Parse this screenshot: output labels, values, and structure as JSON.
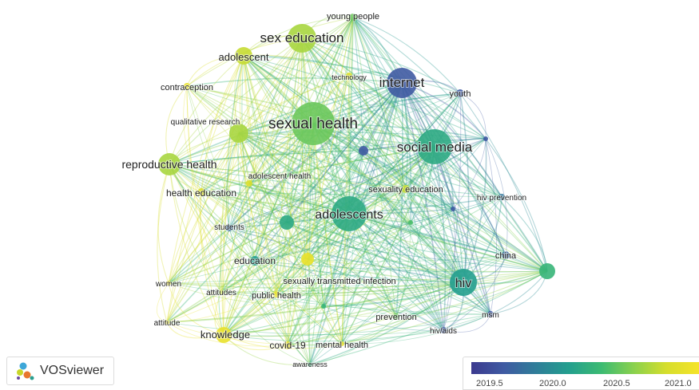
{
  "graph": {
    "nodes": [
      {
        "id": "young-people",
        "label": "young people",
        "year": 2020.5,
        "weight": 1.0
      },
      {
        "id": "sex-education",
        "label": "sex education",
        "year": 2020.7,
        "weight": 3.5
      },
      {
        "id": "adolescent",
        "label": "adolescent",
        "year": 2020.8,
        "weight": 2.2
      },
      {
        "id": "contraception",
        "label": "contraception",
        "year": 2021.0,
        "weight": 0.8
      },
      {
        "id": "technology",
        "label": "technology",
        "year": 2020.9,
        "weight": 0.8
      },
      {
        "id": "internet",
        "label": "internet",
        "year": 2019.6,
        "weight": 4.0
      },
      {
        "id": "youth",
        "label": "youth",
        "year": 2019.6,
        "weight": 1.0
      },
      {
        "id": "qualitative-research",
        "label": "qualitative research",
        "year": 2020.7,
        "weight": 2.2
      },
      {
        "id": "sexual-health",
        "label": "sexual health",
        "year": 2020.5,
        "weight": 7.0
      },
      {
        "id": "social-media",
        "label": "social media",
        "year": 2020.2,
        "weight": 5.0
      },
      {
        "id": "reproductive-health",
        "label": "reproductive health",
        "year": 2020.7,
        "weight": 3.0
      },
      {
        "id": "adolescent-health",
        "label": "adolescent health",
        "year": 2020.9,
        "weight": 0.8
      },
      {
        "id": "sexuality-education",
        "label": "sexuality education",
        "year": 2020.8,
        "weight": 1.0
      },
      {
        "id": "health-education",
        "label": "health education",
        "year": 2020.9,
        "weight": 1.0
      },
      {
        "id": "hiv-prevention",
        "label": "hiv prevention",
        "year": 2019.8,
        "weight": 0.8
      },
      {
        "id": "adolescents",
        "label": "adolescents",
        "year": 2020.2,
        "weight": 5.0
      },
      {
        "id": "students",
        "label": "students",
        "year": 2019.7,
        "weight": 0.8
      },
      {
        "id": "china",
        "label": "china",
        "year": 2019.7,
        "weight": 1.0
      },
      {
        "id": "education",
        "label": "education",
        "year": 2020.1,
        "weight": 1.2
      },
      {
        "id": "hiv",
        "label": "hiv",
        "year": 2020.1,
        "weight": 3.5
      },
      {
        "id": "women",
        "label": "women",
        "year": 2021.0,
        "weight": 0.6
      },
      {
        "id": "sexually-transmitted-infection",
        "label": "sexually transmitted infection",
        "year": 2021.0,
        "weight": 1.5
      },
      {
        "id": "attitudes",
        "label": "attitudes",
        "year": 2020.8,
        "weight": 0.6
      },
      {
        "id": "public-health",
        "label": "public health",
        "year": 2021.0,
        "weight": 0.8
      },
      {
        "id": "attitude",
        "label": "attitude",
        "year": 2021.0,
        "weight": 0.6
      },
      {
        "id": "prevention",
        "label": "prevention",
        "year": 2020.5,
        "weight": 0.8
      },
      {
        "id": "msm",
        "label": "msm",
        "year": 2019.6,
        "weight": 0.8
      },
      {
        "id": "hiv-aids",
        "label": "hiv/aids",
        "year": 2019.6,
        "weight": 0.8
      },
      {
        "id": "knowledge",
        "label": "knowledge",
        "year": 2021.0,
        "weight": 2.0
      },
      {
        "id": "covid-19",
        "label": "covid-19",
        "year": 2021.0,
        "weight": 1.0
      },
      {
        "id": "mental-health",
        "label": "mental health",
        "year": 2021.0,
        "weight": 0.6
      },
      {
        "id": "awareness",
        "label": "awareness",
        "year": 2020.3,
        "weight": 0.5
      }
    ],
    "unlabeled_nodes": [
      {
        "id": "u-far-right",
        "year": 2020.3,
        "weight": 1.5
      },
      {
        "id": "u-center-purple",
        "year": 2019.6,
        "weight": 1.2
      },
      {
        "id": "u-left-center",
        "year": 2020.2,
        "weight": 1.8
      },
      {
        "id": "u-right-small",
        "year": 2020.4,
        "weight": 0.6
      },
      {
        "id": "u-bottom-center",
        "year": 2020.3,
        "weight": 0.6
      },
      {
        "id": "u-top-right",
        "year": 2019.6,
        "weight": 0.6
      },
      {
        "id": "u-mid-right",
        "year": 2019.6,
        "weight": 0.5
      }
    ]
  },
  "logo": {
    "text": "VOSviewer"
  },
  "scale": {
    "ticks": [
      "2019.5",
      "2020.0",
      "2020.5",
      "2021.0"
    ],
    "min": 2019.35,
    "max": 2021.1,
    "colors": [
      "#3c3a8f",
      "#3f5aa2",
      "#2f7e99",
      "#239f8e",
      "#3cbb72",
      "#8ad14d",
      "#d6de2c",
      "#f5e32a"
    ]
  },
  "label_color": "#222222"
}
